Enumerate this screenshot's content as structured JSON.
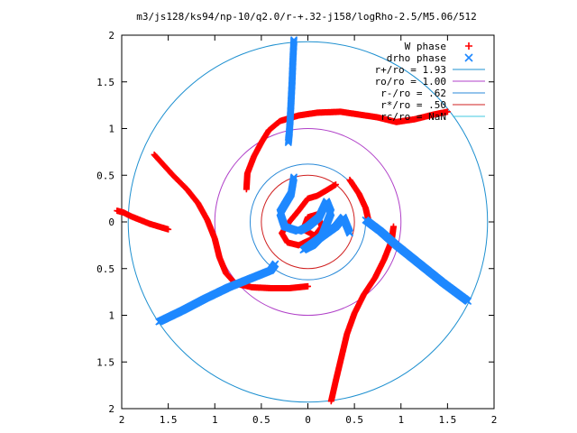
{
  "chart_data": {
    "type": "scatter",
    "title": "m3/js128/ks94/np-10/q2.0/r-+.32-j158/logRho-2.5/M5.06/512",
    "xlabel": "",
    "ylabel": "",
    "xlim": [
      -2,
      2
    ],
    "ylim": [
      -2,
      2
    ],
    "x_tick_labels": [
      "2",
      "1.5",
      "1",
      "0.5",
      "0",
      "0.5",
      "1",
      "1.5",
      "2"
    ],
    "y_tick_labels": [
      "2",
      "1.5",
      "1",
      "0.5",
      "0",
      "0.5",
      "1",
      "1.5",
      "2"
    ],
    "grid": false,
    "legend_position": "top-right",
    "series": [
      {
        "name": "W phase",
        "marker": "plus",
        "color": "#ff0000",
        "arms": [
          [
            [
              -2.05,
              0.12
            ],
            [
              -1.98,
              0.1
            ],
            [
              -1.9,
              0.06
            ],
            [
              -1.8,
              0.02
            ],
            [
              -1.7,
              -0.02
            ],
            [
              -1.6,
              -0.05
            ],
            [
              -1.5,
              -0.08
            ]
          ],
          [
            [
              -1.65,
              0.72
            ],
            [
              -1.45,
              0.5
            ],
            [
              -1.3,
              0.35
            ],
            [
              -1.18,
              0.2
            ],
            [
              -1.08,
              0.02
            ],
            [
              -1.0,
              -0.18
            ],
            [
              -0.95,
              -0.38
            ],
            [
              -0.88,
              -0.55
            ],
            [
              -0.78,
              -0.66
            ],
            [
              -0.6,
              -0.7
            ],
            [
              -0.4,
              -0.71
            ],
            [
              -0.2,
              -0.71
            ],
            [
              0.0,
              -0.69
            ]
          ],
          [
            [
              0.25,
              -1.92
            ],
            [
              0.3,
              -1.7
            ],
            [
              0.36,
              -1.45
            ],
            [
              0.42,
              -1.2
            ],
            [
              0.5,
              -0.98
            ],
            [
              0.6,
              -0.78
            ],
            [
              0.72,
              -0.6
            ],
            [
              0.82,
              -0.4
            ],
            [
              0.9,
              -0.2
            ],
            [
              0.92,
              -0.05
            ]
          ],
          [
            [
              1.5,
              1.18
            ],
            [
              1.35,
              1.15
            ],
            [
              1.15,
              1.1
            ],
            [
              0.95,
              1.07
            ],
            [
              0.75,
              1.12
            ],
            [
              0.55,
              1.15
            ],
            [
              0.35,
              1.18
            ],
            [
              0.1,
              1.17
            ],
            [
              -0.1,
              1.14
            ],
            [
              -0.3,
              1.08
            ],
            [
              -0.42,
              0.98
            ],
            [
              -0.5,
              0.85
            ],
            [
              -0.58,
              0.7
            ],
            [
              -0.65,
              0.52
            ],
            [
              -0.66,
              0.35
            ]
          ],
          [
            [
              0.45,
              0.45
            ],
            [
              0.55,
              0.3
            ],
            [
              0.62,
              0.15
            ],
            [
              0.65,
              0.02
            ]
          ],
          [
            [
              0.3,
              0.4
            ],
            [
              0.22,
              0.35
            ],
            [
              0.1,
              0.28
            ],
            [
              0.0,
              0.25
            ],
            [
              -0.1,
              0.12
            ],
            [
              -0.2,
              0.0
            ],
            [
              -0.28,
              -0.12
            ],
            [
              -0.22,
              -0.22
            ],
            [
              -0.1,
              -0.25
            ],
            [
              0.05,
              -0.18
            ],
            [
              0.15,
              -0.05
            ],
            [
              0.1,
              0.08
            ],
            [
              0.0,
              0.05
            ],
            [
              -0.05,
              -0.08
            ],
            [
              0.08,
              -0.15
            ]
          ]
        ]
      },
      {
        "name": "drho phase",
        "marker": "cross",
        "color": "#1e88ff",
        "arms": [
          [
            [
              -0.15,
              1.95
            ],
            [
              -0.16,
              1.75
            ],
            [
              -0.17,
              1.5
            ],
            [
              -0.18,
              1.3
            ],
            [
              -0.19,
              1.1
            ],
            [
              -0.2,
              0.95
            ],
            [
              -0.21,
              0.85
            ]
          ],
          [
            [
              -1.6,
              -1.07
            ],
            [
              -1.35,
              -0.95
            ],
            [
              -1.1,
              -0.82
            ],
            [
              -0.85,
              -0.7
            ],
            [
              -0.6,
              -0.6
            ],
            [
              -0.4,
              -0.52
            ],
            [
              -0.35,
              -0.45
            ]
          ],
          [
            [
              1.72,
              -0.85
            ],
            [
              1.45,
              -0.65
            ],
            [
              1.2,
              -0.45
            ],
            [
              0.95,
              -0.25
            ],
            [
              0.78,
              -0.1
            ],
            [
              0.62,
              0.02
            ]
          ],
          [
            [
              -0.15,
              0.48
            ],
            [
              -0.18,
              0.3
            ],
            [
              -0.3,
              0.1
            ],
            [
              -0.25,
              -0.05
            ],
            [
              -0.1,
              -0.1
            ],
            [
              0.0,
              -0.05
            ],
            [
              0.12,
              0.05
            ],
            [
              0.2,
              0.22
            ],
            [
              0.25,
              0.1
            ],
            [
              0.15,
              -0.15
            ],
            [
              0.05,
              -0.25
            ],
            [
              -0.05,
              -0.3
            ],
            [
              0.3,
              -0.05
            ],
            [
              0.38,
              0.05
            ],
            [
              0.45,
              -0.12
            ]
          ]
        ]
      }
    ],
    "circles": [
      {
        "name": "r+/ro = 1.93",
        "radius": 1.93,
        "color": "#1e90d0"
      },
      {
        "name": "ro/ro = 1.00",
        "radius": 1.0,
        "color": "#b040c8"
      },
      {
        "name": "r-/ro = .62",
        "radius": 0.62,
        "color": "#2a8ad8"
      },
      {
        "name": "r*/ro = .50",
        "radius": 0.5,
        "color": "#d02020"
      },
      {
        "name": "rc/ro = NaN",
        "radius": null,
        "color": "#40c8e0"
      }
    ]
  }
}
